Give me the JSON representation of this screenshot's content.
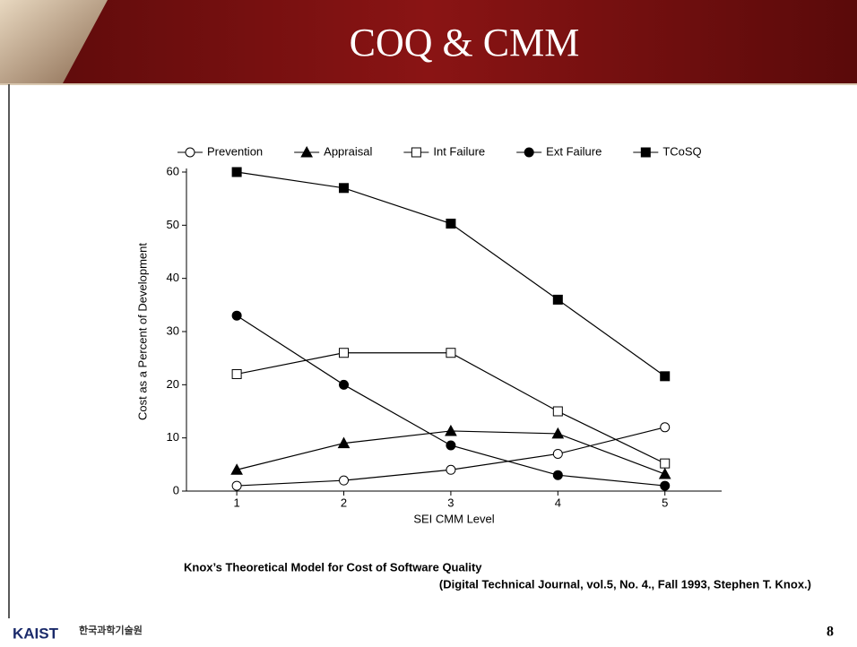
{
  "slide": {
    "title": "COQ & CMM",
    "caption": [
      "Knox’s Theoretical Model for Cost of Software Quality",
      "(Digital Technical Journal, vol.5, No. 4., Fall 1993, Stephen T. Knox.)"
    ],
    "logo": "KAIST",
    "logo_korean": "한국과학기술원",
    "page_number": "8"
  },
  "chart_data": {
    "type": "line",
    "x_label": "SEI CMM Level",
    "y_label": "Cost as a Percent of Development",
    "x": [
      1,
      2,
      3,
      4,
      5
    ],
    "series": [
      {
        "name": "Prevention",
        "color": "#000000",
        "marker": "open-circle",
        "values": [
          1,
          2,
          4,
          7,
          12
        ]
      },
      {
        "name": "Appraisal",
        "color": "#000000",
        "marker": "filled-triangle",
        "values": [
          4,
          9,
          11.3,
          10.8,
          3.2
        ]
      },
      {
        "name": "Int Failure",
        "color": "#000000",
        "marker": "open-square",
        "values": [
          22,
          26,
          26,
          15,
          5.2
        ]
      },
      {
        "name": "Ext Failure",
        "color": "#000000",
        "marker": "filled-circle",
        "values": [
          33,
          20,
          8.6,
          3,
          1
        ]
      },
      {
        "name": "TCoSQ",
        "color": "#000000",
        "marker": "filled-square",
        "values": [
          60,
          57,
          50.3,
          36,
          21.6
        ]
      }
    ],
    "xlim": [
      0.53,
      5.53
    ],
    "xticks": [
      1,
      2,
      3,
      4,
      5
    ],
    "ylim": [
      0,
      60
    ],
    "yticks": [
      0,
      10,
      20,
      30,
      40,
      50,
      60
    ],
    "legend": "top",
    "grid": false
  }
}
